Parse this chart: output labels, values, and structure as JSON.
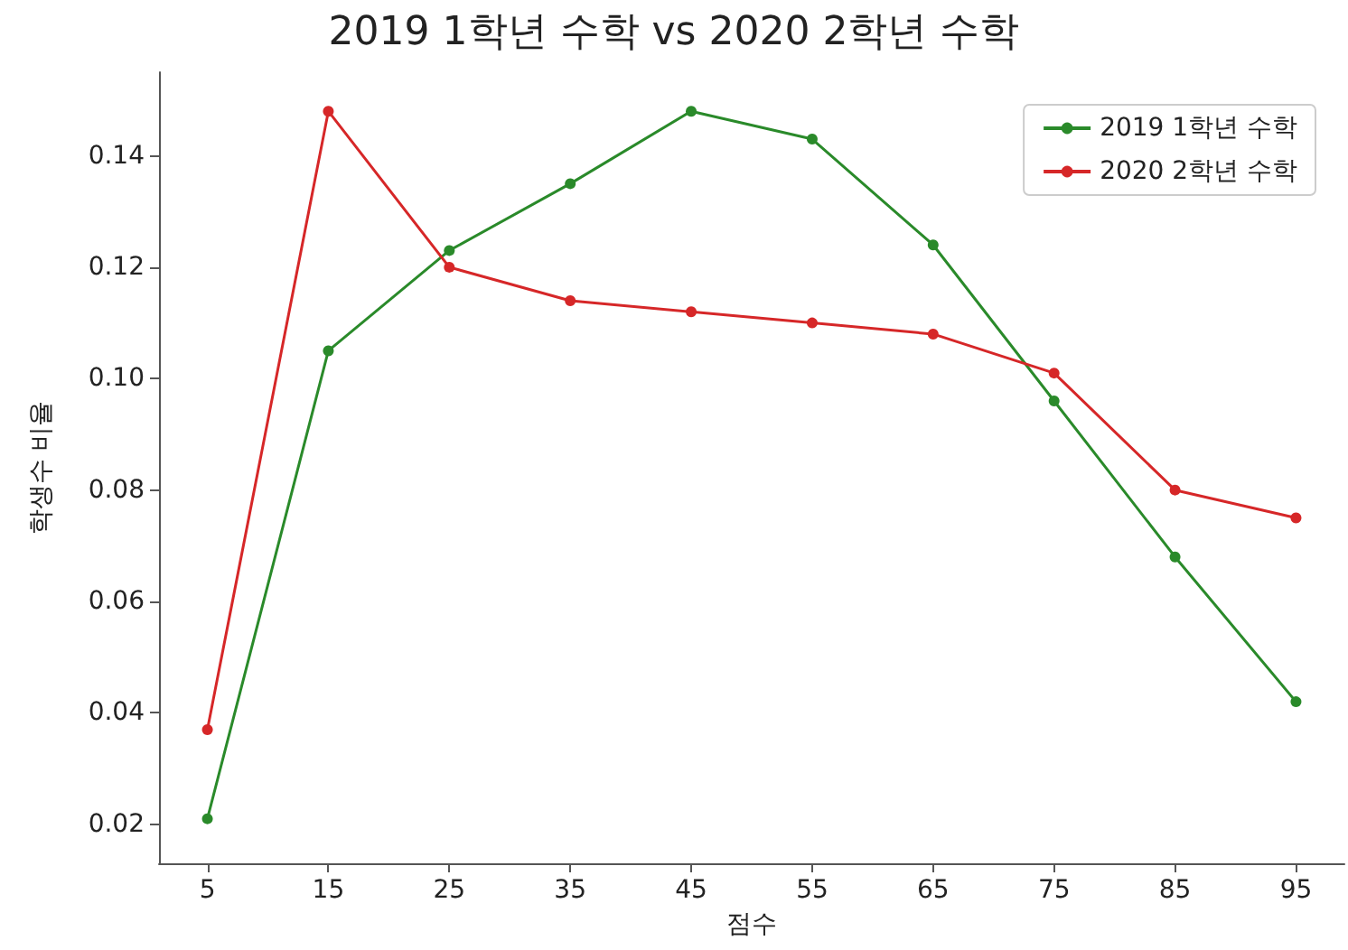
{
  "chart_data": {
    "type": "line",
    "title": "2019 1학년 수학 vs 2020 2학년 수학",
    "xlabel": "점수",
    "ylabel": "학생수 비율",
    "x": [
      5,
      15,
      25,
      35,
      45,
      55,
      65,
      75,
      85,
      95
    ],
    "series": [
      {
        "name": "2019 1학년 수학",
        "color": "#2a8a2a",
        "values": [
          0.021,
          0.105,
          0.123,
          0.135,
          0.148,
          0.143,
          0.124,
          0.096,
          0.068,
          0.042
        ]
      },
      {
        "name": "2020 2학년 수학",
        "color": "#d62728",
        "values": [
          0.037,
          0.148,
          0.12,
          0.114,
          0.112,
          0.11,
          0.108,
          0.101,
          0.08,
          0.075
        ]
      }
    ],
    "xlim": [
      1,
      99
    ],
    "xticks": [
      5,
      15,
      25,
      35,
      45,
      55,
      65,
      75,
      85,
      95
    ],
    "ylim": [
      0.013,
      0.155
    ],
    "yticks": [
      0.02,
      0.04,
      0.06,
      0.08,
      {
        "value": 0.1,
        "label": "0.10"
      },
      0.12,
      0.14
    ],
    "legend": "top right",
    "marker": "circle",
    "line_style": "solid",
    "grid": false
  }
}
